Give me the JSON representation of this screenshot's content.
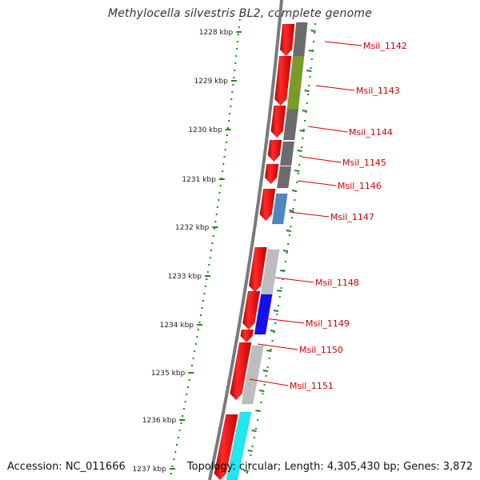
{
  "title": "Methylocella silvestris BL2, complete genome",
  "accession": "Accession: NC_011666",
  "topology": "Topology: circular; Length: 4,305,430 bp; Genes: 3,872",
  "colors": {
    "cds": "#ee0000",
    "backbone": "#7a7a7a",
    "tick": "#1a8a1a",
    "label": "#cc0000",
    "gray_dark": "#6c6c6c",
    "gray_light": "#bdbdbd",
    "olive": "#7a9a2a",
    "steel": "#4f86bf",
    "blue": "#1111ee",
    "cyan": "#22e6f0"
  },
  "scale_ticks": [
    "1228 kbp",
    "1229 kbp",
    "1230 kbp",
    "1231 kbp",
    "1232 kbp",
    "1233 kbp",
    "1234 kbp",
    "1235 kbp",
    "1236 kbp",
    "1237 kbp"
  ],
  "gene_labels": [
    "Msil_1142",
    "Msil_1143",
    "Msil_1144",
    "Msil_1145",
    "Msil_1146",
    "Msil_1147",
    "Msil_1148",
    "Msil_1149",
    "Msil_1150",
    "Msil_1151"
  ]
}
